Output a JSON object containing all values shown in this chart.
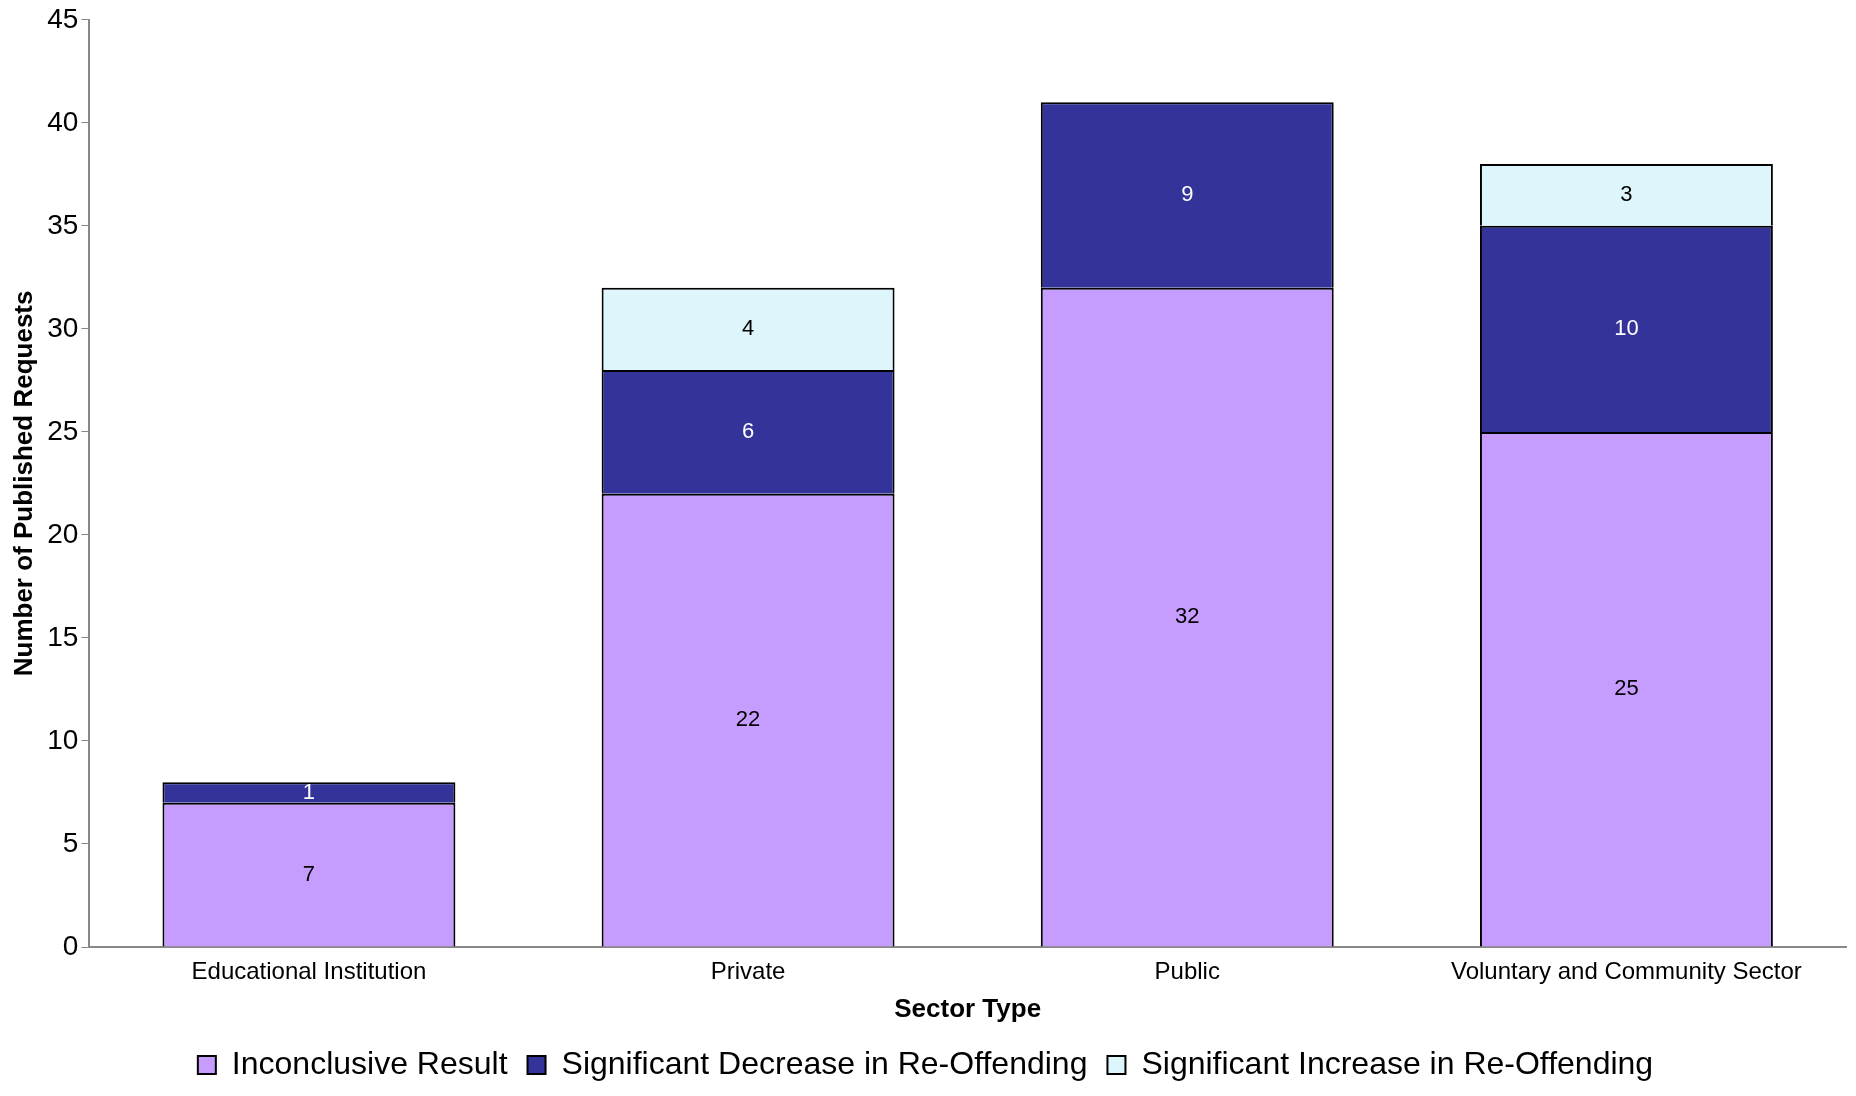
{
  "chart_data": {
    "type": "bar",
    "stacked": true,
    "xlabel": "Sector Type",
    "ylabel": "Number of Published Requests",
    "categories": [
      "Educational Institution",
      "Private",
      "Public",
      "Voluntary and Community Sector"
    ],
    "series": [
      {
        "name": "Inconclusive Result",
        "color": "#c69cff",
        "values": [
          7,
          22,
          32,
          25
        ]
      },
      {
        "name": "Significant Decrease in Re-Offending",
        "color": "#333399",
        "values": [
          1,
          6,
          9,
          10
        ]
      },
      {
        "name": "Significant Increase in Re-Offending",
        "color": "#ddf6fc",
        "values": [
          null,
          4,
          null,
          3
        ]
      }
    ],
    "ylim": [
      0,
      45
    ],
    "yticks": [
      0,
      5,
      10,
      15,
      20,
      25,
      30,
      35,
      40,
      45
    ],
    "grid": false,
    "legend": "bottom",
    "data_labels": true
  }
}
